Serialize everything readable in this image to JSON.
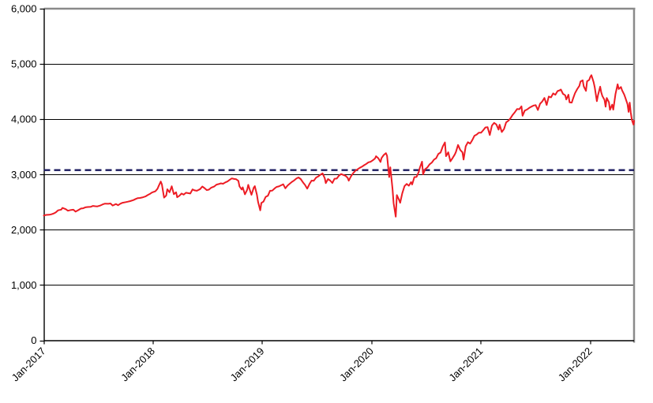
{
  "chart_data": {
    "type": "line",
    "title": "",
    "xlabel": "",
    "ylabel": "",
    "grid": true,
    "legend": "none",
    "x_axis": {
      "range": [
        2017.0,
        2022.4
      ],
      "ticks": [
        {
          "label": "Jan-2017",
          "x": 2017
        },
        {
          "label": "Jan-2018",
          "x": 2018
        },
        {
          "label": "Jan-2019",
          "x": 2019
        },
        {
          "label": "Jan-2020",
          "x": 2020
        },
        {
          "label": "Jan-2021",
          "x": 2021
        },
        {
          "label": "Jan-2022",
          "x": 2022
        }
      ],
      "label_rotation": -45
    },
    "y_axis": {
      "range": [
        0,
        6000
      ],
      "step": 1000,
      "tick_labels": [
        "0",
        "1,000",
        "2,000",
        "3,000",
        "4,000",
        "5,000",
        "6,000"
      ]
    },
    "reference_line": {
      "name": "dashed-average-level",
      "value": 3080,
      "color": "#1a1a5e",
      "width": 2.4,
      "dash": [
        8,
        5
      ]
    },
    "frame": {
      "axis_color": "#000000",
      "border_color": "#8a8a8a",
      "grid_color": "#000000",
      "border_width": 2.5,
      "grid_width": 1
    },
    "series": [
      {
        "name": "index_level",
        "color": "#ed1c24",
        "width": 2,
        "points": [
          [
            2017.0,
            2258
          ],
          [
            2017.02,
            2269
          ],
          [
            2017.05,
            2271
          ],
          [
            2017.07,
            2280
          ],
          [
            2017.09,
            2294
          ],
          [
            2017.11,
            2316
          ],
          [
            2017.13,
            2351
          ],
          [
            2017.16,
            2364
          ],
          [
            2017.17,
            2396
          ],
          [
            2017.2,
            2373
          ],
          [
            2017.22,
            2344
          ],
          [
            2017.25,
            2359
          ],
          [
            2017.27,
            2363
          ],
          [
            2017.29,
            2329
          ],
          [
            2017.31,
            2349
          ],
          [
            2017.34,
            2384
          ],
          [
            2017.36,
            2389
          ],
          [
            2017.38,
            2405
          ],
          [
            2017.4,
            2412
          ],
          [
            2017.43,
            2416
          ],
          [
            2017.45,
            2432
          ],
          [
            2017.47,
            2426
          ],
          [
            2017.49,
            2423
          ],
          [
            2017.52,
            2441
          ],
          [
            2017.54,
            2460
          ],
          [
            2017.56,
            2473
          ],
          [
            2017.59,
            2470
          ],
          [
            2017.61,
            2476
          ],
          [
            2017.63,
            2438
          ],
          [
            2017.66,
            2465
          ],
          [
            2017.68,
            2444
          ],
          [
            2017.7,
            2472
          ],
          [
            2017.72,
            2488
          ],
          [
            2017.75,
            2500
          ],
          [
            2017.77,
            2508
          ],
          [
            2017.79,
            2519
          ],
          [
            2017.82,
            2537
          ],
          [
            2017.84,
            2557
          ],
          [
            2017.86,
            2572
          ],
          [
            2017.88,
            2575
          ],
          [
            2017.9,
            2584
          ],
          [
            2017.93,
            2602
          ],
          [
            2017.95,
            2627
          ],
          [
            2017.97,
            2648
          ],
          [
            2017.99,
            2674
          ],
          [
            2018.02,
            2696
          ],
          [
            2018.04,
            2743
          ],
          [
            2018.05,
            2786
          ],
          [
            2018.07,
            2873
          ],
          [
            2018.08,
            2822
          ],
          [
            2018.1,
            2581
          ],
          [
            2018.12,
            2620
          ],
          [
            2018.13,
            2732
          ],
          [
            2018.15,
            2678
          ],
          [
            2018.17,
            2787
          ],
          [
            2018.19,
            2644
          ],
          [
            2018.21,
            2678
          ],
          [
            2018.22,
            2588
          ],
          [
            2018.24,
            2614
          ],
          [
            2018.26,
            2656
          ],
          [
            2018.28,
            2635
          ],
          [
            2018.3,
            2670
          ],
          [
            2018.32,
            2663
          ],
          [
            2018.34,
            2655
          ],
          [
            2018.36,
            2730
          ],
          [
            2018.38,
            2712
          ],
          [
            2018.4,
            2705
          ],
          [
            2018.43,
            2735
          ],
          [
            2018.45,
            2782
          ],
          [
            2018.47,
            2754
          ],
          [
            2018.49,
            2718
          ],
          [
            2018.51,
            2726
          ],
          [
            2018.53,
            2759
          ],
          [
            2018.56,
            2784
          ],
          [
            2018.58,
            2816
          ],
          [
            2018.6,
            2827
          ],
          [
            2018.62,
            2840
          ],
          [
            2018.64,
            2833
          ],
          [
            2018.66,
            2857
          ],
          [
            2018.68,
            2874
          ],
          [
            2018.7,
            2902
          ],
          [
            2018.72,
            2930
          ],
          [
            2018.74,
            2919
          ],
          [
            2018.76,
            2914
          ],
          [
            2018.78,
            2885
          ],
          [
            2018.79,
            2785
          ],
          [
            2018.81,
            2728
          ],
          [
            2018.82,
            2768
          ],
          [
            2018.84,
            2641
          ],
          [
            2018.86,
            2723
          ],
          [
            2018.87,
            2813
          ],
          [
            2018.89,
            2690
          ],
          [
            2018.9,
            2633
          ],
          [
            2018.92,
            2760
          ],
          [
            2018.93,
            2790
          ],
          [
            2018.95,
            2633
          ],
          [
            2018.96,
            2506
          ],
          [
            2018.98,
            2351
          ],
          [
            2018.99,
            2486
          ],
          [
            2019.01,
            2510
          ],
          [
            2019.03,
            2596
          ],
          [
            2019.05,
            2616
          ],
          [
            2019.07,
            2706
          ],
          [
            2019.09,
            2708
          ],
          [
            2019.11,
            2745
          ],
          [
            2019.13,
            2775
          ],
          [
            2019.15,
            2784
          ],
          [
            2019.17,
            2804
          ],
          [
            2019.19,
            2822
          ],
          [
            2019.21,
            2749
          ],
          [
            2019.23,
            2800
          ],
          [
            2019.25,
            2834
          ],
          [
            2019.27,
            2867
          ],
          [
            2019.29,
            2892
          ],
          [
            2019.31,
            2926
          ],
          [
            2019.33,
            2946
          ],
          [
            2019.35,
            2918
          ],
          [
            2019.37,
            2860
          ],
          [
            2019.39,
            2811
          ],
          [
            2019.41,
            2744
          ],
          [
            2019.43,
            2826
          ],
          [
            2019.45,
            2890
          ],
          [
            2019.47,
            2887
          ],
          [
            2019.49,
            2942
          ],
          [
            2019.51,
            2964
          ],
          [
            2019.53,
            2995
          ],
          [
            2019.55,
            3020
          ],
          [
            2019.57,
            2932
          ],
          [
            2019.58,
            2844
          ],
          [
            2019.6,
            2918
          ],
          [
            2019.62,
            2889
          ],
          [
            2019.64,
            2847
          ],
          [
            2019.66,
            2924
          ],
          [
            2019.68,
            2926
          ],
          [
            2019.7,
            2979
          ],
          [
            2019.72,
            3008
          ],
          [
            2019.74,
            2992
          ],
          [
            2019.76,
            2977
          ],
          [
            2019.78,
            2940
          ],
          [
            2019.79,
            2888
          ],
          [
            2019.81,
            2966
          ],
          [
            2019.83,
            3022
          ],
          [
            2019.85,
            3067
          ],
          [
            2019.87,
            3093
          ],
          [
            2019.89,
            3120
          ],
          [
            2019.91,
            3141
          ],
          [
            2019.93,
            3168
          ],
          [
            2019.95,
            3192
          ],
          [
            2019.97,
            3221
          ],
          [
            2019.99,
            3231
          ],
          [
            2020.01,
            3258
          ],
          [
            2020.03,
            3289
          ],
          [
            2020.04,
            3330
          ],
          [
            2020.06,
            3295
          ],
          [
            2020.08,
            3226
          ],
          [
            2020.09,
            3298
          ],
          [
            2020.11,
            3353
          ],
          [
            2020.13,
            3386
          ],
          [
            2020.14,
            3338
          ],
          [
            2020.16,
            2954
          ],
          [
            2020.17,
            3130
          ],
          [
            2020.19,
            2741
          ],
          [
            2020.2,
            2481
          ],
          [
            2020.22,
            2237
          ],
          [
            2020.23,
            2627
          ],
          [
            2020.25,
            2541
          ],
          [
            2020.26,
            2488
          ],
          [
            2020.28,
            2663
          ],
          [
            2020.3,
            2790
          ],
          [
            2020.32,
            2830
          ],
          [
            2020.34,
            2797
          ],
          [
            2020.36,
            2863
          ],
          [
            2020.37,
            2820
          ],
          [
            2020.39,
            2954
          ],
          [
            2020.41,
            2955
          ],
          [
            2020.43,
            3044
          ],
          [
            2020.44,
            3122
          ],
          [
            2020.46,
            3232
          ],
          [
            2020.47,
            3002
          ],
          [
            2020.49,
            3098
          ],
          [
            2020.51,
            3130
          ],
          [
            2020.53,
            3185
          ],
          [
            2020.55,
            3216
          ],
          [
            2020.57,
            3271
          ],
          [
            2020.59,
            3295
          ],
          [
            2020.61,
            3373
          ],
          [
            2020.63,
            3397
          ],
          [
            2020.65,
            3508
          ],
          [
            2020.67,
            3580
          ],
          [
            2020.68,
            3332
          ],
          [
            2020.7,
            3401
          ],
          [
            2020.72,
            3237
          ],
          [
            2020.74,
            3298
          ],
          [
            2020.76,
            3363
          ],
          [
            2020.77,
            3408
          ],
          [
            2020.79,
            3534
          ],
          [
            2020.81,
            3443
          ],
          [
            2020.83,
            3400
          ],
          [
            2020.84,
            3270
          ],
          [
            2020.86,
            3510
          ],
          [
            2020.88,
            3585
          ],
          [
            2020.9,
            3558
          ],
          [
            2020.92,
            3622
          ],
          [
            2020.94,
            3702
          ],
          [
            2020.96,
            3722
          ],
          [
            2020.98,
            3756
          ],
          [
            2021.0,
            3756
          ],
          [
            2021.02,
            3801
          ],
          [
            2021.04,
            3851
          ],
          [
            2021.06,
            3855
          ],
          [
            2021.08,
            3714
          ],
          [
            2021.1,
            3886
          ],
          [
            2021.12,
            3934
          ],
          [
            2021.14,
            3906
          ],
          [
            2021.16,
            3811
          ],
          [
            2021.17,
            3901
          ],
          [
            2021.19,
            3768
          ],
          [
            2021.21,
            3821
          ],
          [
            2021.23,
            3943
          ],
          [
            2021.25,
            3973
          ],
          [
            2021.27,
            4020
          ],
          [
            2021.29,
            4080
          ],
          [
            2021.31,
            4128
          ],
          [
            2021.33,
            4185
          ],
          [
            2021.35,
            4181
          ],
          [
            2021.37,
            4233
          ],
          [
            2021.38,
            4063
          ],
          [
            2021.4,
            4156
          ],
          [
            2021.42,
            4174
          ],
          [
            2021.44,
            4204
          ],
          [
            2021.46,
            4227
          ],
          [
            2021.48,
            4247
          ],
          [
            2021.5,
            4255
          ],
          [
            2021.52,
            4166
          ],
          [
            2021.54,
            4281
          ],
          [
            2021.56,
            4320
          ],
          [
            2021.58,
            4385
          ],
          [
            2021.6,
            4258
          ],
          [
            2021.62,
            4411
          ],
          [
            2021.64,
            4395
          ],
          [
            2021.66,
            4468
          ],
          [
            2021.68,
            4442
          ],
          [
            2021.7,
            4509
          ],
          [
            2021.72,
            4523
          ],
          [
            2021.73,
            4537
          ],
          [
            2021.75,
            4459
          ],
          [
            2021.77,
            4433
          ],
          [
            2021.78,
            4358
          ],
          [
            2021.8,
            4443
          ],
          [
            2021.81,
            4307
          ],
          [
            2021.83,
            4300
          ],
          [
            2021.84,
            4363
          ],
          [
            2021.86,
            4471
          ],
          [
            2021.88,
            4544
          ],
          [
            2021.9,
            4605
          ],
          [
            2021.91,
            4682
          ],
          [
            2021.93,
            4705
          ],
          [
            2021.94,
            4595
          ],
          [
            2021.96,
            4513
          ],
          [
            2021.97,
            4686
          ],
          [
            2021.99,
            4712
          ],
          [
            2022.0,
            4766
          ],
          [
            2022.01,
            4797
          ],
          [
            2022.03,
            4670
          ],
          [
            2022.04,
            4577
          ],
          [
            2022.06,
            4326
          ],
          [
            2022.07,
            4432
          ],
          [
            2022.09,
            4589
          ],
          [
            2022.1,
            4483
          ],
          [
            2022.11,
            4419
          ],
          [
            2022.13,
            4349
          ],
          [
            2022.14,
            4226
          ],
          [
            2022.15,
            4385
          ],
          [
            2022.17,
            4306
          ],
          [
            2022.18,
            4171
          ],
          [
            2022.2,
            4263
          ],
          [
            2022.21,
            4173
          ],
          [
            2022.23,
            4456
          ],
          [
            2022.25,
            4631
          ],
          [
            2022.26,
            4546
          ],
          [
            2022.28,
            4583
          ],
          [
            2022.29,
            4525
          ],
          [
            2022.31,
            4447
          ],
          [
            2022.32,
            4392
          ],
          [
            2022.34,
            4272
          ],
          [
            2022.35,
            4132
          ],
          [
            2022.36,
            4300
          ],
          [
            2022.37,
            4124
          ],
          [
            2022.38,
            3991
          ],
          [
            2022.39,
            3930
          ],
          [
            2022.395,
            3901
          ],
          [
            2022.4,
            3973
          ]
        ]
      }
    ]
  }
}
